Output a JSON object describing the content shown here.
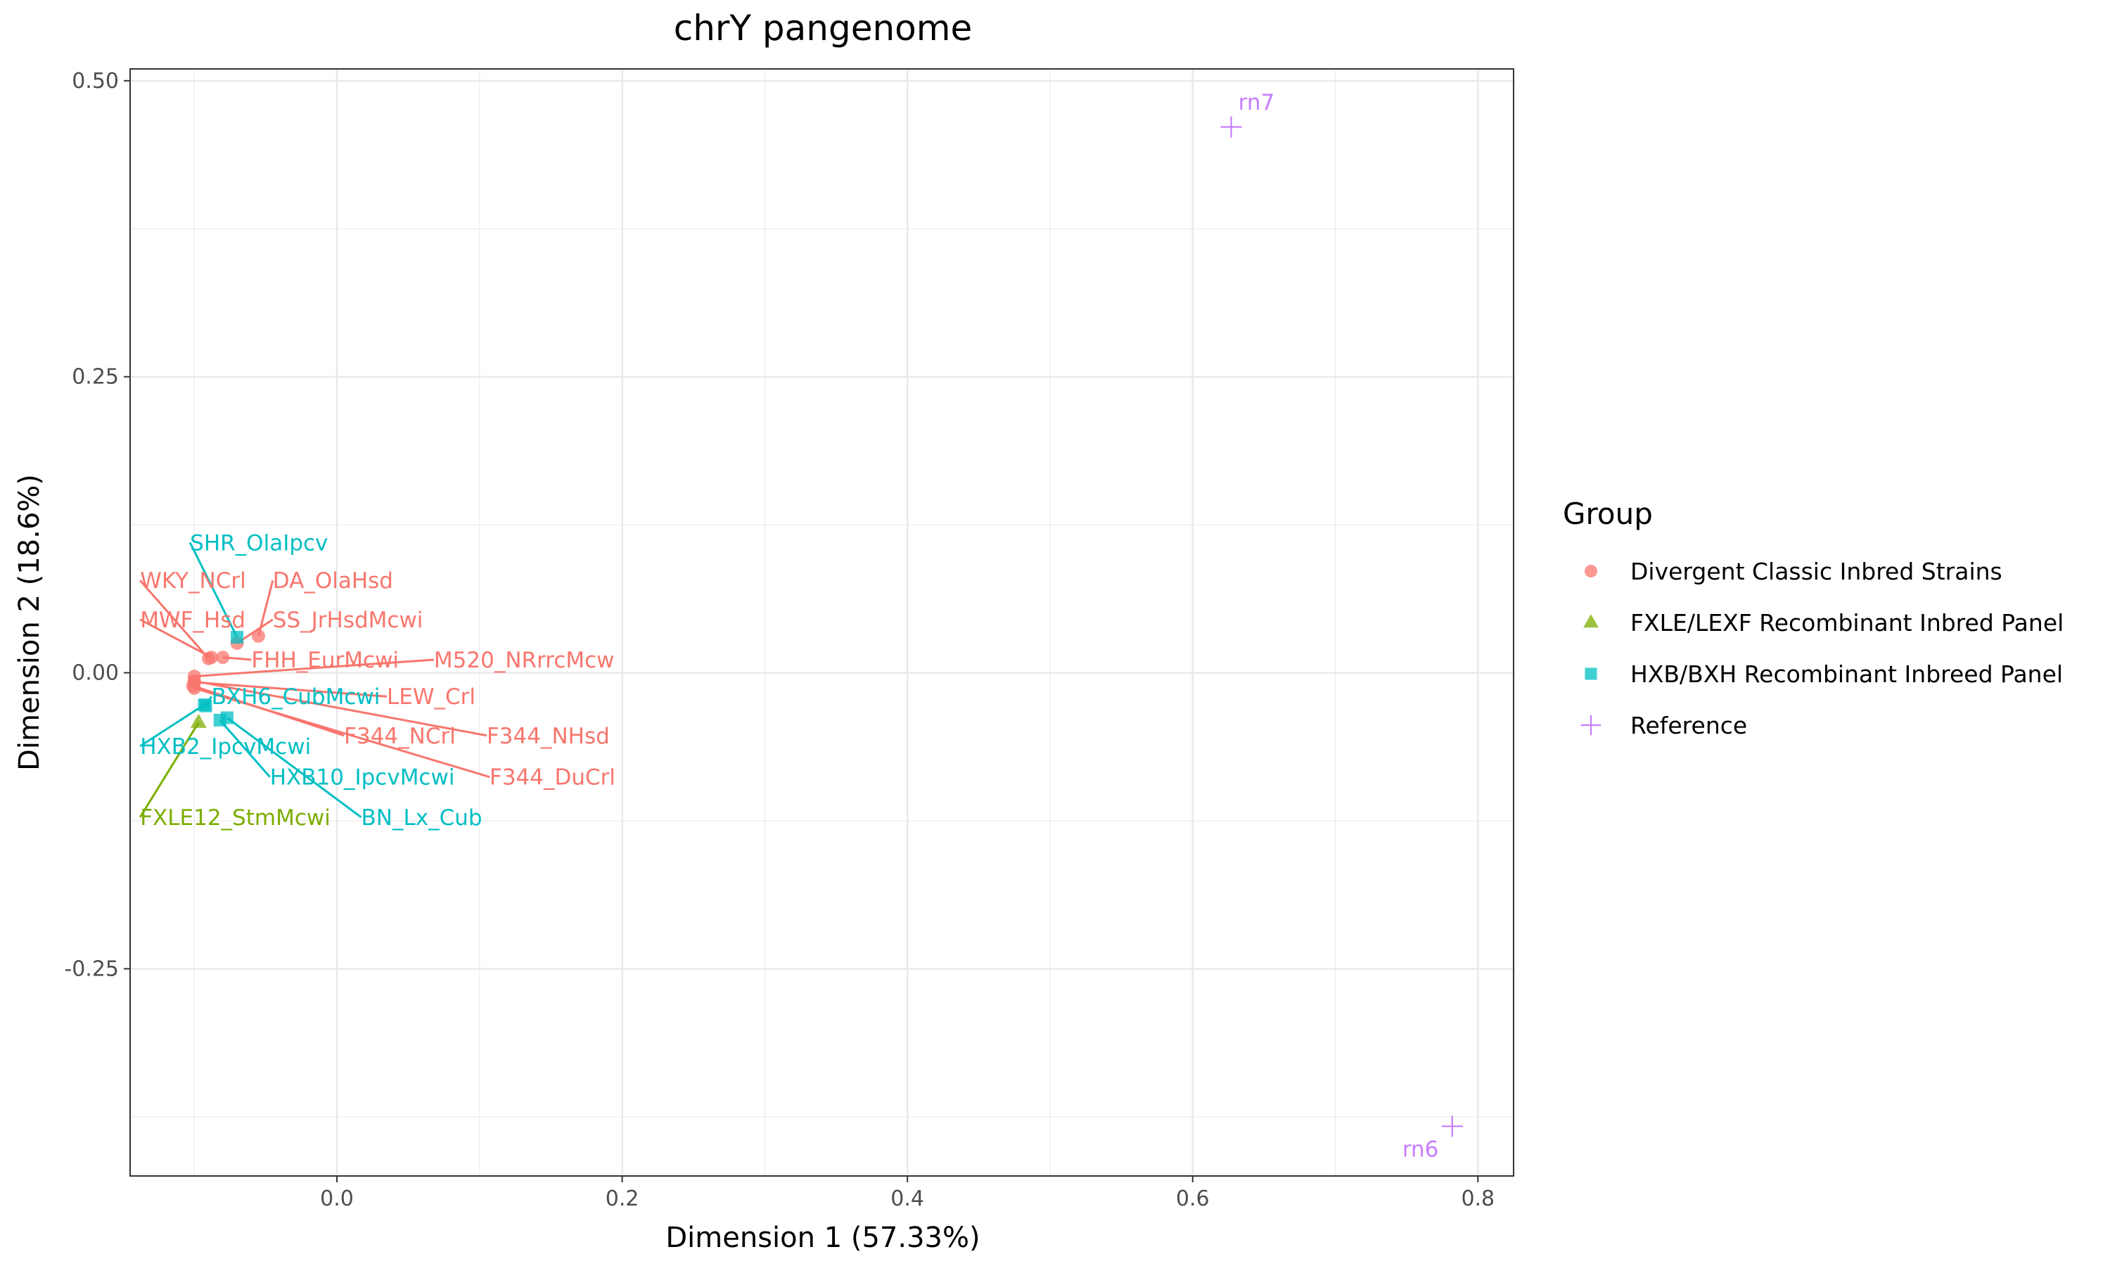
{
  "chart_data": {
    "type": "scatter",
    "title": "chrY pangenome",
    "xlabel": "Dimension 1 (57.33%)",
    "ylabel": "Dimension 2 (18.6%)",
    "xlim": [
      -0.145,
      0.825
    ],
    "ylim": [
      -0.425,
      0.51
    ],
    "x_ticks": [
      0.0,
      0.2,
      0.4,
      0.6,
      0.8
    ],
    "x_tick_labels": [
      "0.0",
      "0.2",
      "0.4",
      "0.6",
      "0.8"
    ],
    "y_ticks": [
      -0.25,
      0.0,
      0.25,
      0.5
    ],
    "y_tick_labels": [
      "-0.25",
      "0.00",
      "0.25",
      "0.50"
    ],
    "grid": true,
    "legend_position": "right",
    "legend_title": "Group",
    "series": [
      {
        "name": "Divergent Classic Inbred Strains",
        "color": "#F8766D",
        "shape": "circle",
        "points": [
          {
            "label": "DA_OlaHsd",
            "x": -0.055,
            "y": 0.031,
            "label_x": -0.045,
            "label_y": 0.078
          },
          {
            "label": "SS_JrHsdMcwi",
            "x": -0.07,
            "y": 0.025,
            "label_x": -0.045,
            "label_y": 0.045
          },
          {
            "label": "WKY_NCrl",
            "x": -0.09,
            "y": 0.012,
            "label_x": -0.138,
            "label_y": 0.078
          },
          {
            "label": "MWF_Hsd",
            "x": -0.088,
            "y": 0.013,
            "label_x": -0.138,
            "label_y": 0.045
          },
          {
            "label": "FHH_EurMcwi",
            "x": -0.08,
            "y": 0.013,
            "label_x": -0.06,
            "label_y": 0.011
          },
          {
            "label": "M520_NRrrcMcw",
            "x": -0.1,
            "y": -0.003,
            "label_x": 0.068,
            "label_y": 0.011
          },
          {
            "label": "LEW_Crl",
            "x": -0.1,
            "y": -0.008,
            "label_x": 0.035,
            "label_y": -0.02
          },
          {
            "label": "F344_NCrl",
            "x": -0.101,
            "y": -0.011,
            "label_x": 0.005,
            "label_y": -0.053
          },
          {
            "label": "F344_NHsd",
            "x": -0.1,
            "y": -0.007,
            "label_x": 0.105,
            "label_y": -0.053
          },
          {
            "label": "F344_DuCrl",
            "x": -0.1,
            "y": -0.013,
            "label_x": 0.107,
            "label_y": -0.088
          }
        ]
      },
      {
        "name": "FXLE/LEXF Recombinant Inbred Panel",
        "color": "#7CAE00",
        "shape": "triangle",
        "points": [
          {
            "label": "FXLE12_StmMcwi",
            "x": -0.097,
            "y": -0.042,
            "label_x": -0.138,
            "label_y": -0.122
          }
        ]
      },
      {
        "name": "HXB/BXH Recombinant Inbreed Panel",
        "color": "#00BFC4",
        "shape": "square",
        "points": [
          {
            "label": "SHR_OlaIpcv",
            "x": -0.07,
            "y": 0.03,
            "label_x": -0.103,
            "label_y": 0.11
          },
          {
            "label": "BXH6_CubMcwi",
            "x": -0.092,
            "y": -0.028,
            "label_x": -0.088,
            "label_y": -0.02
          },
          {
            "label": "HXB2_IpcvMcwi",
            "x": -0.093,
            "y": -0.027,
            "label_x": -0.138,
            "label_y": -0.062
          },
          {
            "label": "HXB10_IpcvMcwi",
            "x": -0.082,
            "y": -0.04,
            "label_x": -0.047,
            "label_y": -0.088
          },
          {
            "label": "BN_Lx_Cub",
            "x": -0.077,
            "y": -0.038,
            "label_x": 0.017,
            "label_y": -0.122
          }
        ]
      },
      {
        "name": "Reference",
        "color": "#C77CFF",
        "shape": "plus",
        "points": [
          {
            "label": "rn7",
            "x": 0.627,
            "y": 0.461,
            "label_x": 0.632,
            "label_y": 0.482
          },
          {
            "label": "rn6",
            "x": 0.782,
            "y": -0.383,
            "label_x": 0.747,
            "label_y": -0.402
          }
        ]
      }
    ]
  }
}
